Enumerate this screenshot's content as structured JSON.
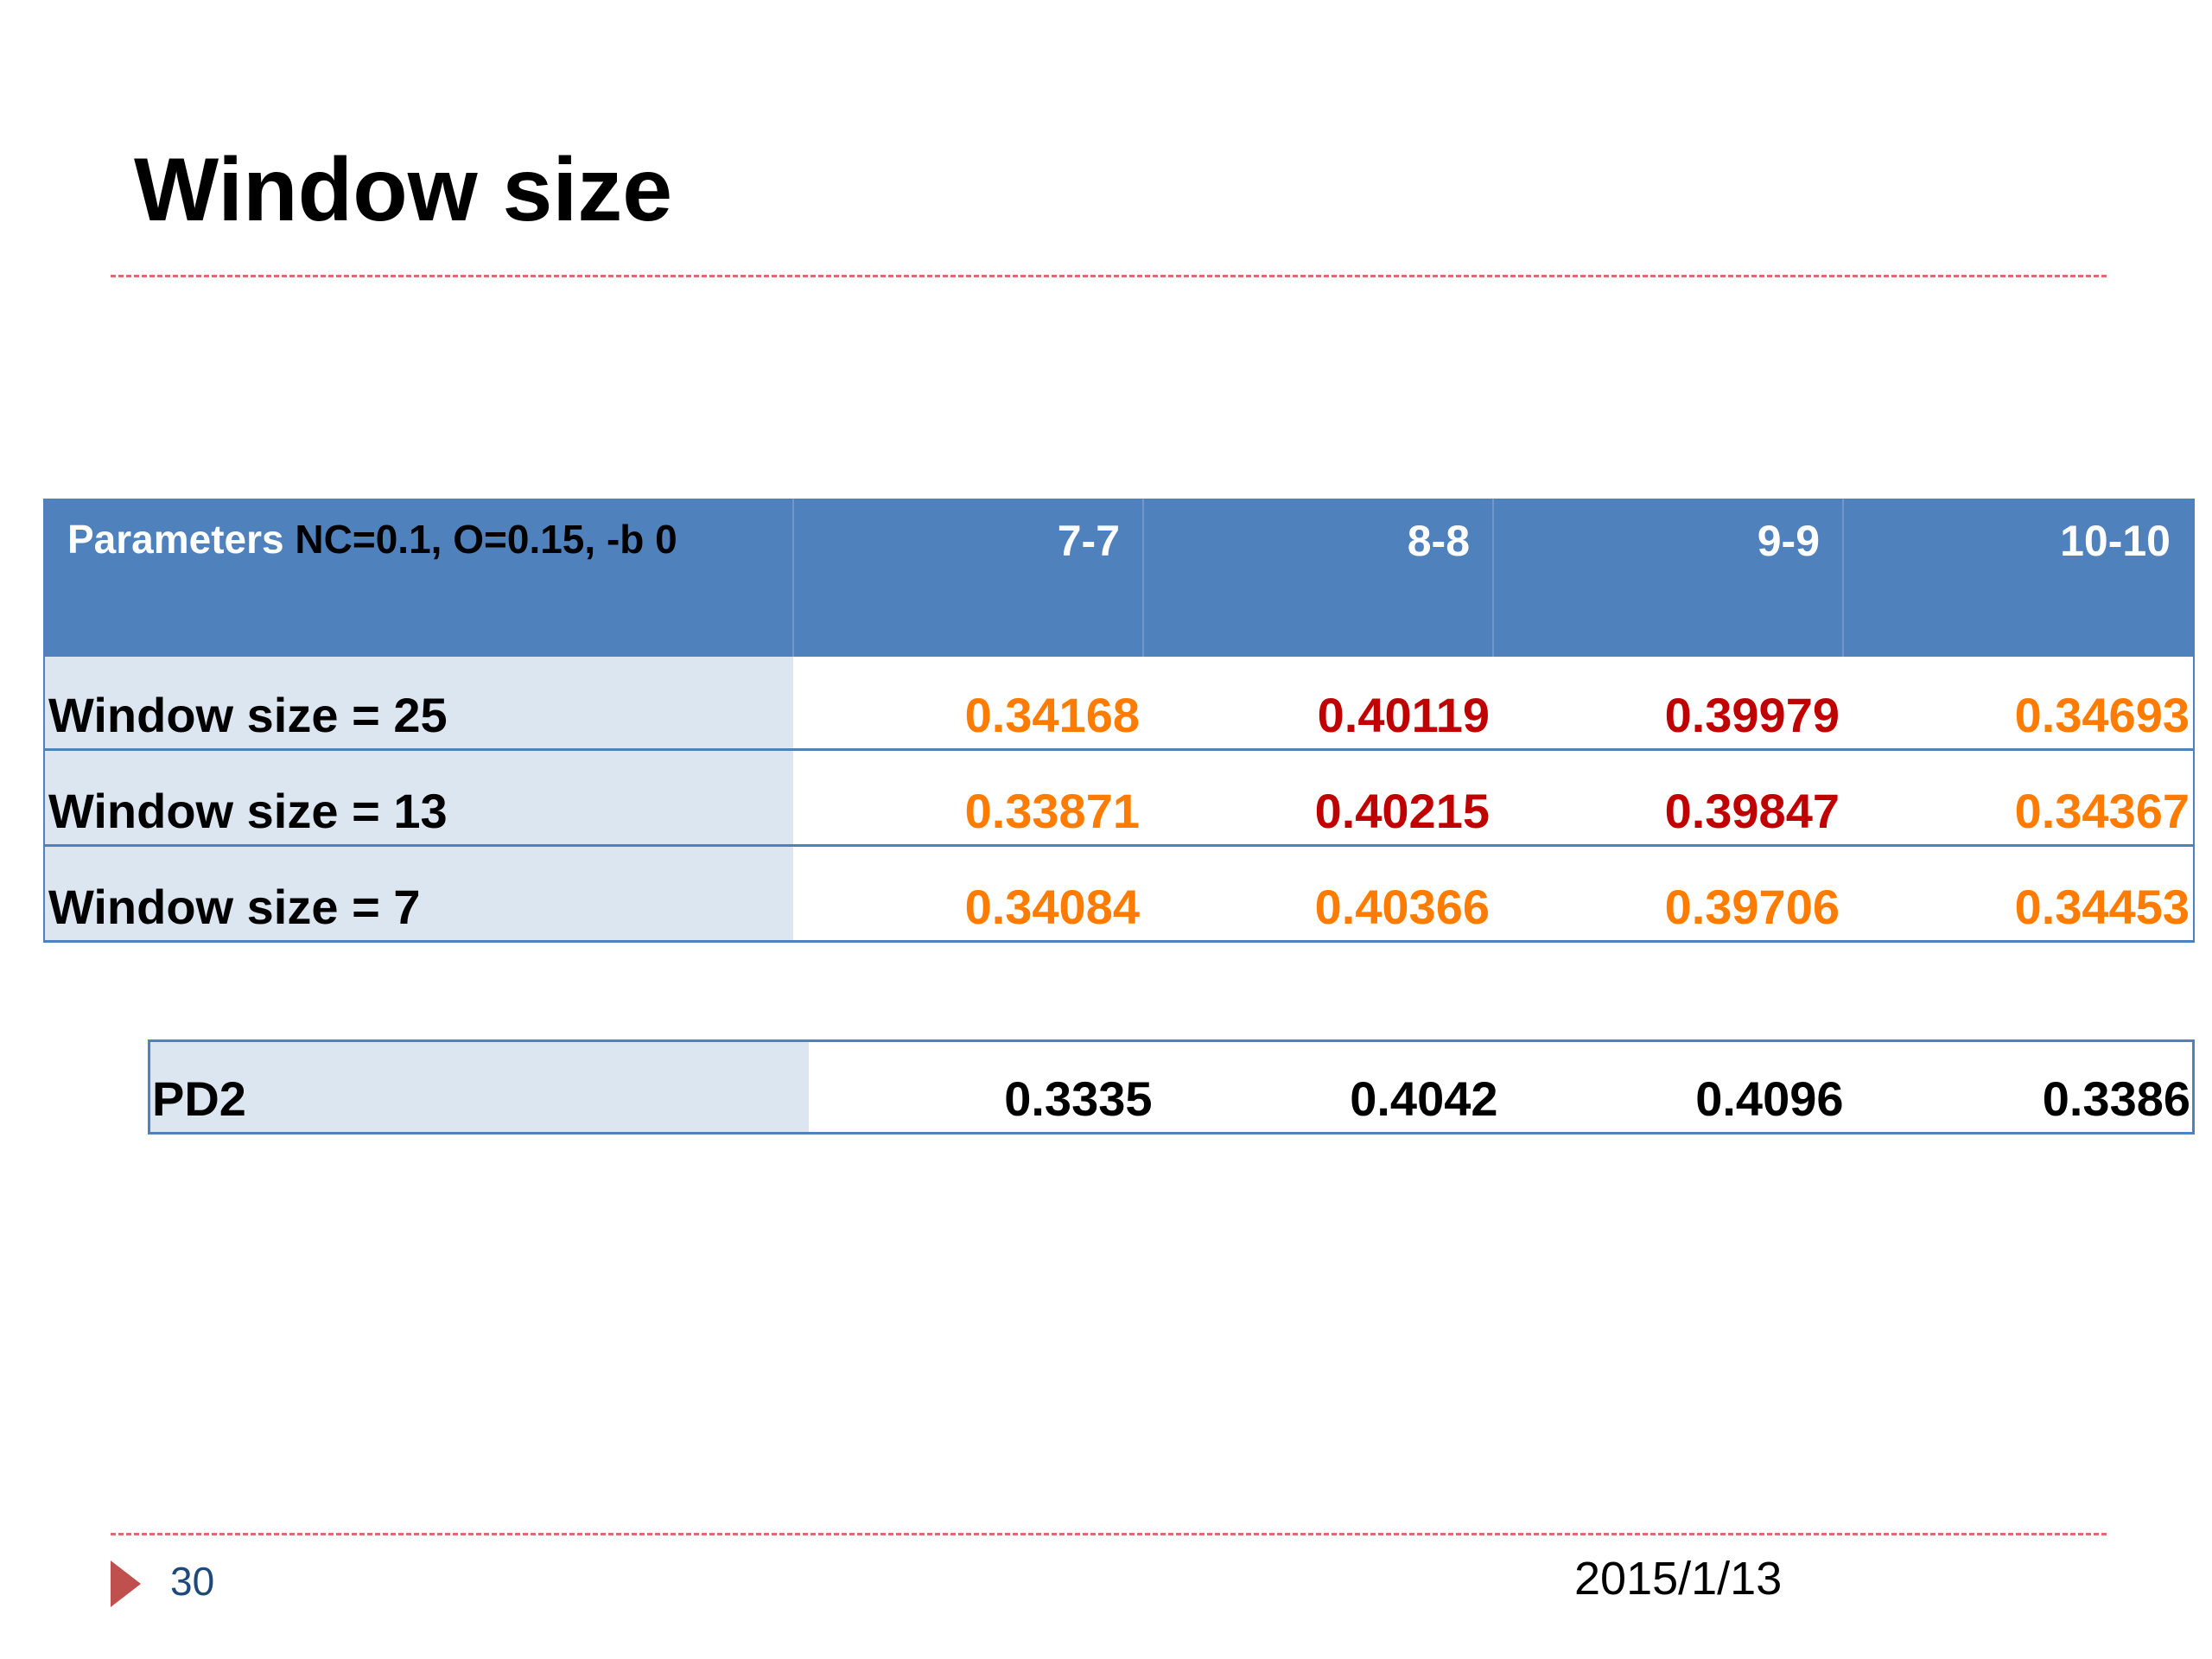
{
  "slide": {
    "title": "Window size",
    "page_number": "30",
    "date": "2015/1/13"
  },
  "table": {
    "header": {
      "param_label": "Parameters",
      "param_values": " NC=0.1, O=0.15, -b 0",
      "columns": [
        "7-7",
        "8-8",
        "9-9",
        "10-10"
      ]
    },
    "rows": [
      {
        "label": "Window size = 25",
        "values": [
          "0.34168",
          "0.40119",
          "0.39979",
          "0.34693"
        ]
      },
      {
        "label": "Window size = 13",
        "values": [
          "0.33871",
          "0.40215",
          "0.39847",
          "0.34367"
        ]
      },
      {
        "label": "Window size = 7",
        "values": [
          "0.34084",
          "0.40366",
          "0.39706",
          "0.34453"
        ]
      }
    ],
    "colors": {
      "orange": "#ff7c00",
      "red": "#c00000",
      "header_bg": "#4f81bd",
      "label_bg": "#dce6f1"
    }
  },
  "pd2": {
    "label": "PD2",
    "values": [
      "0.3335",
      "0.4042",
      "0.4096",
      "0.3386"
    ]
  }
}
